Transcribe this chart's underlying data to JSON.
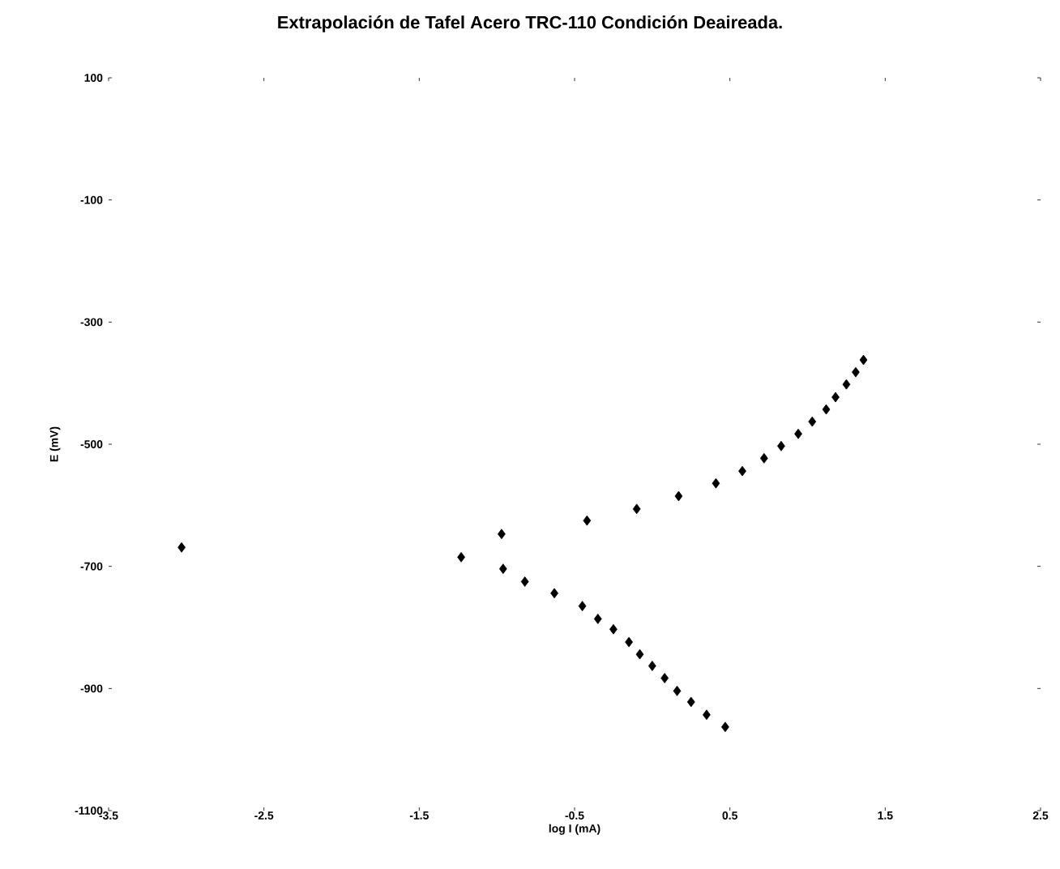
{
  "chart_data": {
    "type": "scatter",
    "title": "Extrapolación de Tafel Acero TRC-110 Condición Deaireada.",
    "xlabel": "log I (mA)",
    "ylabel": "E (mV)",
    "x": [
      -3.03,
      -1.23,
      -0.97,
      -0.96,
      -0.82,
      -0.63,
      -0.45,
      -0.35,
      -0.25,
      -0.15,
      -0.08,
      0.0,
      0.08,
      0.16,
      0.25,
      0.35,
      0.47,
      -0.42,
      -0.1,
      0.17,
      0.41,
      0.58,
      0.72,
      0.83,
      0.94,
      1.03,
      1.12,
      1.18,
      1.25,
      1.31,
      1.36
    ],
    "values": [
      -669,
      -685,
      -647,
      -704,
      -725,
      -744,
      -765,
      -786,
      -803,
      -824,
      -844,
      -863,
      -883,
      -904,
      -922,
      -943,
      -963,
      -625,
      -606,
      -585,
      -564,
      -544,
      -523,
      -503,
      -483,
      -463,
      -443,
      -423,
      -402,
      -382,
      -362
    ],
    "color": "#000000",
    "marker": "diamond",
    "grid": false,
    "xlim": [
      -3.5,
      2.5
    ],
    "ylim": [
      -1100,
      100
    ],
    "xticks": [
      -3.5,
      -2.5,
      -1.5,
      -0.5,
      0.5,
      1.5,
      2.5
    ],
    "yticks": [
      -1100,
      -900,
      -700,
      -500,
      -300,
      -100,
      100
    ]
  }
}
